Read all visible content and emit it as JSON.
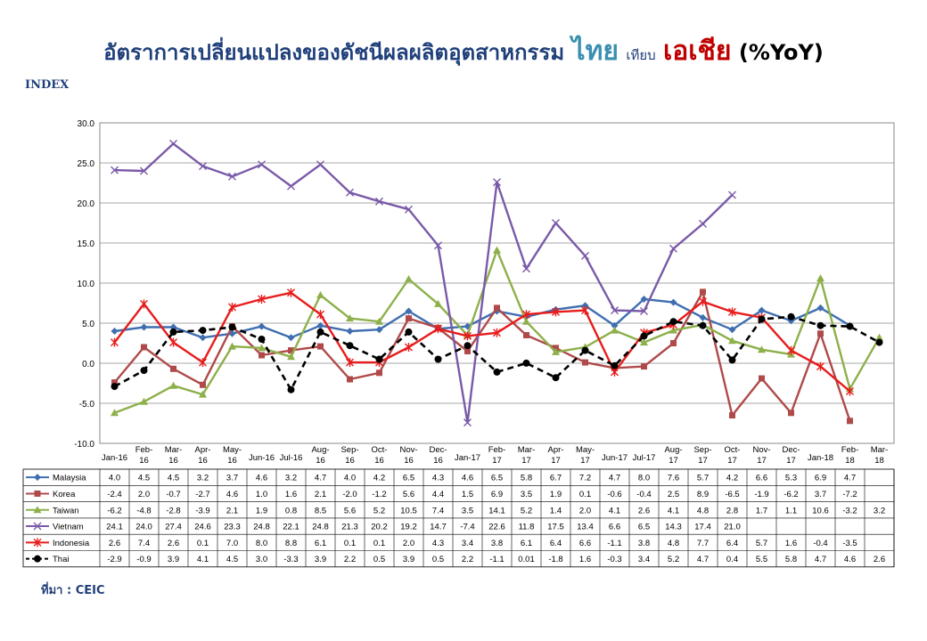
{
  "header": {
    "title_part1": "อัตราการเปลี่ยนแปลงของดัชนีผลผลิตอุตสาหกรรม",
    "title_thai": "ไทย",
    "title_vs": "เทียบ",
    "title_asia": "เอเชีย",
    "title_yoy": "(%YoY)",
    "color_thai": "#3a8fb0",
    "color_asia": "#c00000"
  },
  "index_label": "INDEX",
  "source_label": "ที่มา : CEIC",
  "chart_data": {
    "type": "line",
    "title": "",
    "xlabel": "",
    "ylabel": "INDEX",
    "ylim": [
      -10,
      30
    ],
    "yticks": [
      -10,
      -5,
      0,
      5,
      10,
      15,
      20,
      25,
      30
    ],
    "ytick_labels": [
      "-10.0",
      "-5.0",
      "0.0",
      "5.0",
      "10.0",
      "15.0",
      "20.0",
      "25.0",
      "30.0"
    ],
    "grid": true,
    "legend": "table-below",
    "categories": [
      "Jan-16",
      "Feb-16",
      "Mar-16",
      "Apr-16",
      "May-16",
      "Jun-16",
      "Jul-16",
      "Aug-16",
      "Sep-16",
      "Oct-16",
      "Nov-16",
      "Dec-16",
      "Jan-17",
      "Feb-17",
      "Mar-17",
      "Apr-17",
      "May-17",
      "Jun-17",
      "Jul-17",
      "Aug-17",
      "Sep-17",
      "Oct-17",
      "Nov-17",
      "Dec-17",
      "Jan-18",
      "Feb-18",
      "Mar-18"
    ],
    "series": [
      {
        "name": "Malaysia",
        "color": "#3f6fb0",
        "marker": "diamond",
        "dash": false,
        "values": [
          4.0,
          4.5,
          4.5,
          3.2,
          3.7,
          4.6,
          3.2,
          4.7,
          4.0,
          4.2,
          6.5,
          4.3,
          4.6,
          6.5,
          5.8,
          6.7,
          7.2,
          4.7,
          8.0,
          7.6,
          5.7,
          4.2,
          6.6,
          5.3,
          6.9,
          4.7,
          null
        ],
        "labels": [
          "4.0",
          "4.5",
          "4.5",
          "3.2",
          "3.7",
          "4.6",
          "3.2",
          "4.7",
          "4.0",
          "4.2",
          "6.5",
          "4.3",
          "4.6",
          "6.5",
          "5.8",
          "6.7",
          "7.2",
          "4.7",
          "8.0",
          "7.6",
          "5.7",
          "4.2",
          "6.6",
          "5.3",
          "6.9",
          "4.7",
          ""
        ]
      },
      {
        "name": "Korea",
        "color": "#b04a4a",
        "marker": "square",
        "dash": false,
        "values": [
          -2.4,
          2.0,
          -0.7,
          -2.7,
          4.6,
          1.0,
          1.6,
          2.1,
          -2.0,
          -1.2,
          5.6,
          4.4,
          1.5,
          6.9,
          3.5,
          1.9,
          0.1,
          -0.6,
          -0.4,
          2.5,
          8.9,
          -6.5,
          -1.9,
          -6.2,
          3.7,
          -7.2,
          null
        ],
        "labels": [
          "-2.4",
          "2.0",
          "-0.7",
          "-2.7",
          "4.6",
          "1.0",
          "1.6",
          "2.1",
          "-2.0",
          "-1.2",
          "5.6",
          "4.4",
          "1.5",
          "6.9",
          "3.5",
          "1.9",
          "0.1",
          "-0.6",
          "-0.4",
          "2.5",
          "8.9",
          "-6.5",
          "-1.9",
          "-6.2",
          "3.7",
          "-7.2",
          ""
        ]
      },
      {
        "name": "Taiwan",
        "color": "#8db04a",
        "marker": "triangle",
        "dash": false,
        "values": [
          -6.2,
          -4.8,
          -2.8,
          -3.9,
          2.1,
          1.9,
          0.8,
          8.5,
          5.6,
          5.2,
          10.5,
          7.4,
          3.5,
          14.1,
          5.2,
          1.4,
          2.0,
          4.1,
          2.6,
          4.1,
          4.8,
          2.8,
          1.7,
          1.1,
          10.6,
          -3.2,
          3.2
        ],
        "labels": [
          "-6.2",
          "-4.8",
          "-2.8",
          "-3.9",
          "2.1",
          "1.9",
          "0.8",
          "8.5",
          "5.6",
          "5.2",
          "10.5",
          "7.4",
          "3.5",
          "14.1",
          "5.2",
          "1.4",
          "2.0",
          "4.1",
          "2.6",
          "4.1",
          "4.8",
          "2.8",
          "1.7",
          "1.1",
          "10.6",
          "-3.2",
          "3.2"
        ]
      },
      {
        "name": "Vietnam",
        "color": "#7a5aa8",
        "marker": "x",
        "dash": false,
        "values": [
          24.1,
          24.0,
          27.4,
          24.6,
          23.3,
          24.8,
          22.1,
          24.8,
          21.3,
          20.2,
          19.2,
          14.7,
          -7.4,
          22.6,
          11.8,
          17.5,
          13.4,
          6.6,
          6.5,
          14.3,
          17.4,
          21.0,
          null,
          null,
          null,
          null,
          null
        ],
        "labels": [
          "24.1",
          "24.0",
          "27.4",
          "24.6",
          "23.3",
          "24.8",
          "22.1",
          "24.8",
          "21.3",
          "20.2",
          "19.2",
          "14.7",
          "-7.4",
          "22.6",
          "11.8",
          "17.5",
          "13.4",
          "6.6",
          "6.5",
          "14.3",
          "17.4",
          "21.0",
          "",
          "",
          "",
          "",
          ""
        ]
      },
      {
        "name": "Indonesia",
        "color": "#e81c1c",
        "marker": "star",
        "dash": false,
        "values": [
          2.6,
          7.4,
          2.6,
          0.1,
          7.0,
          8.0,
          8.8,
          6.1,
          0.1,
          0.1,
          2.0,
          4.3,
          3.4,
          3.8,
          6.1,
          6.4,
          6.6,
          -1.1,
          3.8,
          4.8,
          7.7,
          6.4,
          5.7,
          1.6,
          -0.4,
          -3.5,
          null
        ],
        "labels": [
          "2.6",
          "7.4",
          "2.6",
          "0.1",
          "7.0",
          "8.0",
          "8.8",
          "6.1",
          "0.1",
          "0.1",
          "2.0",
          "4.3",
          "3.4",
          "3.8",
          "6.1",
          "6.4",
          "6.6",
          "-1.1",
          "3.8",
          "4.8",
          "7.7",
          "6.4",
          "5.7",
          "1.6",
          "-0.4",
          "-3.5",
          ""
        ]
      },
      {
        "name": "Thai",
        "color": "#000000",
        "marker": "circle",
        "dash": true,
        "values": [
          -2.9,
          -0.9,
          3.9,
          4.1,
          4.5,
          3.0,
          -3.3,
          3.9,
          2.2,
          0.5,
          3.9,
          0.5,
          2.2,
          -1.1,
          0.01,
          -1.8,
          1.6,
          -0.3,
          3.4,
          5.2,
          4.7,
          0.4,
          5.5,
          5.8,
          4.7,
          4.6,
          2.6
        ],
        "labels": [
          "-2.9",
          "-0.9",
          "3.9",
          "4.1",
          "4.5",
          "3.0",
          "-3.3",
          "3.9",
          "2.2",
          "0.5",
          "3.9",
          "0.5",
          "2.2",
          "-1.1",
          "0.01",
          "-1.8",
          "1.6",
          "-0.3",
          "3.4",
          "5.2",
          "4.7",
          "0.4",
          "5.5",
          "5.8",
          "4.7",
          "4.6",
          "2.6"
        ]
      }
    ]
  }
}
